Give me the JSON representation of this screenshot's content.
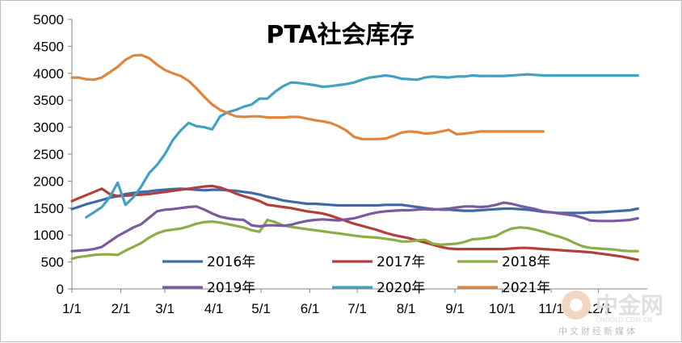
{
  "chart_data": {
    "type": "line",
    "title": "PTA社会库存",
    "ylim": [
      0,
      5000
    ],
    "yticks": [
      "0",
      "500",
      "1000",
      "1500",
      "2000",
      "2500",
      "3000",
      "3500",
      "4000",
      "4500",
      "5000"
    ],
    "xticks": [
      "1/1",
      "2/1",
      "3/1",
      "4/1",
      "5/1",
      "6/1",
      "7/1",
      "8/1",
      "9/1",
      "10/1",
      "11/1",
      "12/1"
    ],
    "grid": false,
    "legend_position": "bottom",
    "series": [
      {
        "name": "2016年",
        "color": "#3f6aa6",
        "x": [
          1,
          5,
          10,
          15,
          20,
          25,
          30,
          35,
          40,
          45,
          50,
          55,
          60,
          65,
          70,
          75,
          80,
          85,
          90,
          95,
          100,
          105,
          110,
          115,
          120,
          125,
          130,
          135,
          140,
          145,
          150,
          155,
          160,
          165,
          170,
          175,
          180,
          185,
          190,
          195,
          200,
          205,
          210,
          215,
          220,
          225,
          230,
          235,
          240,
          245,
          250,
          255,
          260,
          265,
          270,
          275,
          280,
          285,
          290,
          295,
          300,
          305,
          310,
          315,
          320,
          325,
          330,
          335,
          340,
          345,
          350,
          355,
          360
        ],
        "y": [
          1480,
          1520,
          1570,
          1610,
          1650,
          1690,
          1720,
          1760,
          1780,
          1800,
          1810,
          1830,
          1840,
          1850,
          1860,
          1850,
          1840,
          1830,
          1840,
          1840,
          1830,
          1820,
          1800,
          1780,
          1750,
          1710,
          1680,
          1640,
          1620,
          1600,
          1580,
          1580,
          1570,
          1560,
          1550,
          1550,
          1550,
          1550,
          1550,
          1550,
          1560,
          1560,
          1560,
          1540,
          1520,
          1500,
          1480,
          1470,
          1470,
          1460,
          1450,
          1450,
          1460,
          1470,
          1480,
          1490,
          1490,
          1480,
          1470,
          1450,
          1430,
          1420,
          1410,
          1410,
          1410,
          1410,
          1420,
          1420,
          1430,
          1440,
          1450,
          1460,
          1490
        ]
      },
      {
        "name": "2017年",
        "color": "#b23f3b",
        "x": [
          1,
          5,
          10,
          15,
          20,
          25,
          30,
          35,
          40,
          45,
          50,
          55,
          60,
          65,
          70,
          75,
          80,
          85,
          90,
          95,
          100,
          105,
          110,
          115,
          120,
          125,
          130,
          135,
          140,
          145,
          150,
          155,
          160,
          165,
          170,
          175,
          180,
          185,
          190,
          195,
          200,
          205,
          210,
          215,
          220,
          225,
          230,
          235,
          240,
          245,
          250,
          255,
          260,
          265,
          270,
          275,
          280,
          285,
          290,
          295,
          300,
          305,
          310,
          315,
          320,
          325,
          330,
          335,
          340,
          345,
          350,
          355,
          360
        ],
        "y": [
          1630,
          1680,
          1740,
          1800,
          1860,
          1760,
          1720,
          1730,
          1740,
          1750,
          1760,
          1780,
          1800,
          1820,
          1840,
          1860,
          1880,
          1900,
          1910,
          1880,
          1830,
          1770,
          1720,
          1680,
          1630,
          1560,
          1540,
          1520,
          1500,
          1470,
          1440,
          1420,
          1400,
          1360,
          1310,
          1260,
          1210,
          1170,
          1130,
          1090,
          1040,
          1000,
          970,
          940,
          900,
          860,
          820,
          780,
          750,
          740,
          740,
          740,
          740,
          740,
          740,
          740,
          750,
          760,
          760,
          750,
          740,
          730,
          720,
          710,
          700,
          690,
          680,
          660,
          640,
          620,
          600,
          570,
          540
        ]
      },
      {
        "name": "2018年",
        "color": "#8cad47",
        "x": [
          1,
          5,
          10,
          15,
          20,
          25,
          30,
          35,
          40,
          45,
          50,
          55,
          60,
          65,
          70,
          75,
          80,
          85,
          90,
          95,
          100,
          105,
          110,
          115,
          120,
          125,
          130,
          135,
          140,
          145,
          150,
          155,
          160,
          165,
          170,
          175,
          180,
          185,
          190,
          195,
          200,
          205,
          210,
          215,
          220,
          225,
          230,
          235,
          240,
          245,
          250,
          255,
          260,
          265,
          270,
          275,
          280,
          285,
          290,
          295,
          300,
          305,
          310,
          315,
          320,
          325,
          330,
          335,
          340,
          345,
          350,
          355,
          360
        ],
        "y": [
          560,
          590,
          610,
          630,
          640,
          640,
          630,
          710,
          780,
          850,
          950,
          1030,
          1080,
          1100,
          1120,
          1160,
          1210,
          1240,
          1250,
          1230,
          1200,
          1170,
          1140,
          1090,
          1060,
          1280,
          1240,
          1180,
          1150,
          1130,
          1110,
          1090,
          1070,
          1050,
          1030,
          1010,
          990,
          970,
          960,
          950,
          930,
          910,
          880,
          880,
          900,
          910,
          840,
          820,
          830,
          840,
          870,
          920,
          930,
          950,
          980,
          1060,
          1120,
          1140,
          1130,
          1100,
          1060,
          1010,
          970,
          920,
          850,
          790,
          760,
          750,
          740,
          730,
          710,
          700,
          700
        ]
      },
      {
        "name": "2019年",
        "color": "#7b5aa0",
        "x": [
          1,
          5,
          10,
          15,
          20,
          25,
          30,
          35,
          40,
          45,
          50,
          55,
          60,
          65,
          70,
          75,
          80,
          85,
          90,
          95,
          100,
          105,
          110,
          115,
          120,
          125,
          130,
          135,
          140,
          145,
          150,
          155,
          160,
          165,
          170,
          175,
          180,
          185,
          190,
          195,
          200,
          205,
          210,
          215,
          220,
          225,
          230,
          235,
          240,
          245,
          250,
          255,
          260,
          265,
          270,
          275,
          280,
          285,
          290,
          295,
          300,
          305,
          310,
          315,
          320,
          325,
          330,
          335,
          340,
          345,
          350,
          355,
          360
        ],
        "y": [
          700,
          710,
          720,
          740,
          780,
          880,
          980,
          1060,
          1140,
          1200,
          1320,
          1440,
          1470,
          1480,
          1500,
          1520,
          1530,
          1470,
          1400,
          1340,
          1310,
          1290,
          1280,
          1180,
          1160,
          1180,
          1180,
          1170,
          1190,
          1230,
          1260,
          1280,
          1290,
          1280,
          1270,
          1290,
          1310,
          1350,
          1390,
          1420,
          1440,
          1450,
          1460,
          1460,
          1470,
          1480,
          1470,
          1480,
          1490,
          1510,
          1530,
          1530,
          1520,
          1530,
          1560,
          1600,
          1580,
          1540,
          1510,
          1480,
          1440,
          1420,
          1400,
          1380,
          1360,
          1320,
          1270,
          1260,
          1260,
          1260,
          1270,
          1280,
          1310
        ]
      },
      {
        "name": "2020年",
        "color": "#43a1c1",
        "x": [
          10,
          15,
          20,
          25,
          30,
          35,
          40,
          45,
          50,
          55,
          60,
          65,
          70,
          75,
          80,
          85,
          90,
          95,
          100,
          105,
          110,
          115,
          120,
          125,
          130,
          135,
          140,
          145,
          150,
          155,
          160,
          165,
          170,
          175,
          180,
          185,
          190,
          195,
          200,
          205,
          210,
          215,
          220,
          225,
          230,
          235,
          240,
          245,
          250,
          255,
          260,
          265,
          270,
          275,
          280,
          285,
          290,
          295,
          300,
          305,
          310,
          315,
          320,
          325,
          330,
          335,
          340,
          345,
          350,
          355,
          360
        ],
        "y": [
          1330,
          1420,
          1520,
          1700,
          1970,
          1560,
          1700,
          1900,
          2150,
          2300,
          2500,
          2760,
          2940,
          3080,
          3020,
          3000,
          2960,
          3200,
          3280,
          3320,
          3380,
          3420,
          3530,
          3530,
          3660,
          3760,
          3830,
          3820,
          3800,
          3780,
          3750,
          3760,
          3780,
          3800,
          3830,
          3880,
          3920,
          3940,
          3960,
          3940,
          3900,
          3890,
          3880,
          3920,
          3940,
          3930,
          3920,
          3940,
          3940,
          3960,
          3950,
          3950,
          3950,
          3950,
          3960,
          3970,
          3980,
          3970,
          3960,
          3960,
          3960,
          3960,
          3960,
          3960,
          3960,
          3960,
          3960,
          3960,
          3960,
          3960,
          3960
        ]
      },
      {
        "name": "2021年",
        "color": "#e0853b",
        "x": [
          1,
          5,
          10,
          15,
          20,
          25,
          30,
          35,
          40,
          45,
          50,
          55,
          60,
          65,
          70,
          75,
          80,
          85,
          90,
          95,
          100,
          105,
          110,
          115,
          120,
          125,
          130,
          135,
          140,
          145,
          150,
          155,
          160,
          165,
          170,
          175,
          180,
          185,
          190,
          195,
          200,
          205,
          210,
          215,
          220,
          225,
          230,
          235,
          240,
          245,
          250,
          255,
          260,
          265,
          270,
          275,
          280,
          285,
          290,
          295,
          300
        ],
        "y": [
          3920,
          3920,
          3890,
          3880,
          3920,
          4020,
          4120,
          4250,
          4330,
          4340,
          4280,
          4160,
          4060,
          4000,
          3950,
          3860,
          3720,
          3560,
          3420,
          3320,
          3260,
          3200,
          3190,
          3200,
          3200,
          3180,
          3180,
          3180,
          3190,
          3190,
          3160,
          3130,
          3110,
          3080,
          3020,
          2940,
          2820,
          2780,
          2780,
          2780,
          2790,
          2840,
          2900,
          2920,
          2910,
          2880,
          2890,
          2920,
          2950,
          2870,
          2880,
          2900,
          2920,
          2920,
          2920,
          2920,
          2920,
          2920,
          2920,
          2920,
          2920
        ]
      }
    ]
  },
  "watermark": {
    "brand": "中金网",
    "url": "CNGOLD.COM.CN",
    "tagline": "中文财经新媒体"
  }
}
